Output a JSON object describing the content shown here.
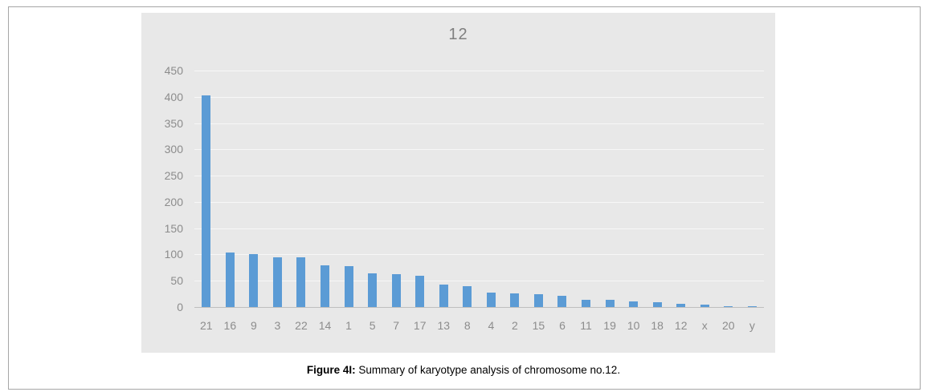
{
  "figure": {
    "caption_prefix": "Figure 4I:",
    "caption_text": " Summary of karyotype analysis of chromosome no.12."
  },
  "chart_data": {
    "type": "bar",
    "title": "12",
    "categories": [
      "21",
      "16",
      "9",
      "3",
      "22",
      "14",
      "1",
      "5",
      "7",
      "17",
      "13",
      "8",
      "4",
      "2",
      "15",
      "6",
      "11",
      "19",
      "10",
      "18",
      "12",
      "x",
      "20",
      "y"
    ],
    "values": [
      403,
      103,
      101,
      95,
      94,
      80,
      78,
      64,
      62,
      60,
      43,
      40,
      28,
      26,
      25,
      22,
      13,
      13,
      10,
      9,
      6,
      4,
      1,
      1
    ],
    "xlabel": "",
    "ylabel": "",
    "ylim": [
      0,
      450
    ],
    "ytick_step": 50,
    "grid": true,
    "legend": "none",
    "colors": {
      "bar": "#5B9BD5",
      "panel_background": "#E8E8E8",
      "gridline": "#F7F7F7",
      "baseline": "#BFBFBF",
      "axis_label": "#8C8C8C",
      "title": "#7F7F7F"
    }
  }
}
